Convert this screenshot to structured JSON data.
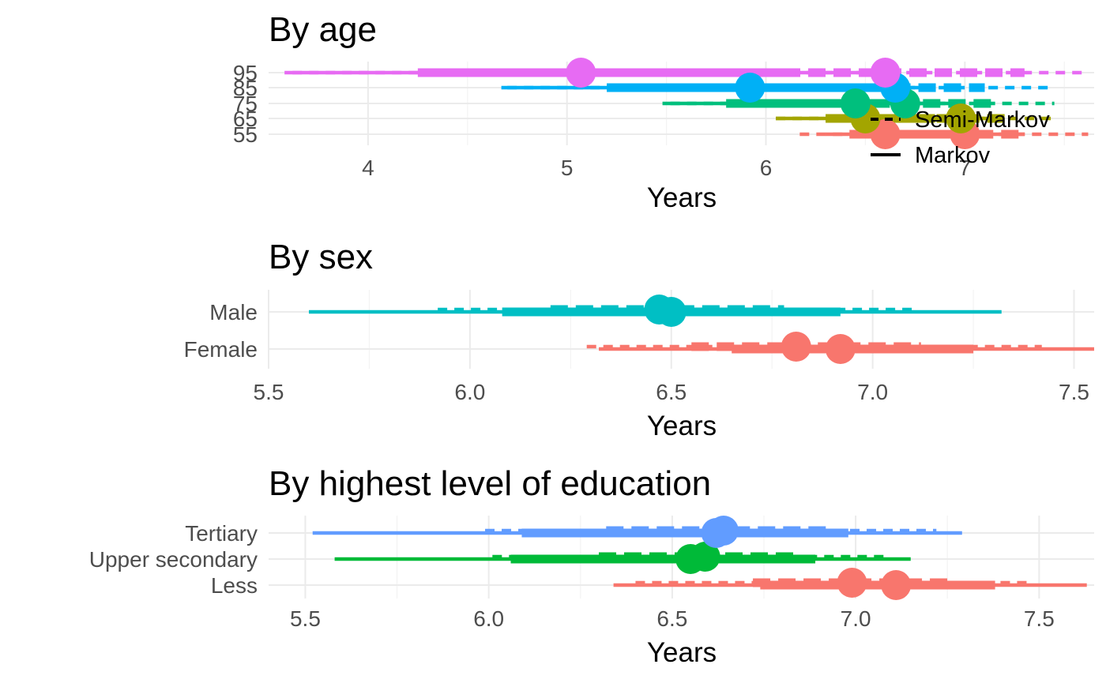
{
  "chart_data": [
    {
      "type": "forest",
      "title": "By age",
      "xlabel": "Years",
      "ylabel": "",
      "xlim": [
        3.5,
        7.65
      ],
      "xticks": [
        4,
        5,
        6,
        7
      ],
      "xtick_labels": [
        "4",
        "5",
        "6",
        "7"
      ],
      "categories": [
        "55",
        "65",
        "75",
        "85",
        "95"
      ],
      "colors": {
        "55": "#F8766D",
        "65": "#A3A500",
        "75": "#00BF7D",
        "85": "#00B0F6",
        "95": "#E76BF3"
      },
      "legend": {
        "position": "right",
        "entries": [
          {
            "label": "Semi-Markov",
            "linetype": "dashed"
          },
          {
            "label": "Markov",
            "linetype": "solid"
          }
        ]
      },
      "series": [
        {
          "model": "Semi-Markov",
          "linetype": "dashed",
          "points": [
            {
              "category": "55",
              "estimate": 7.0,
              "low95": 6.17,
              "high95": 7.62,
              "low50": 6.42,
              "high50": 7.3
            },
            {
              "category": "65",
              "estimate": 6.98,
              "low95": 6.05,
              "high95": 7.45,
              "low50": 6.35,
              "high50": 7.2
            },
            {
              "category": "75",
              "estimate": 6.7,
              "low95": 5.52,
              "high95": 7.45,
              "low50": 5.9,
              "high50": 7.15
            },
            {
              "category": "85",
              "estimate": 6.65,
              "low95": 4.7,
              "high95": 7.45,
              "low50": 5.75,
              "high50": 7.1
            },
            {
              "category": "95",
              "estimate": 6.6,
              "low95": 3.62,
              "high95": 7.6,
              "low50": 5.45,
              "high50": 7.3
            }
          ]
        },
        {
          "model": "Markov",
          "linetype": "solid",
          "points": [
            {
              "category": "55",
              "estimate": 6.6,
              "low95": 6.3,
              "high95": 7.3,
              "low50": 6.5,
              "high50": 7.0
            },
            {
              "category": "65",
              "estimate": 6.5,
              "low95": 6.05,
              "high95": 7.15,
              "low50": 6.3,
              "high50": 6.85
            },
            {
              "category": "75",
              "estimate": 6.45,
              "low95": 5.48,
              "high95": 7.0,
              "low50": 5.8,
              "high50": 6.6
            },
            {
              "category": "85",
              "estimate": 5.92,
              "low95": 4.67,
              "high95": 6.85,
              "low50": 5.2,
              "high50": 6.55
            },
            {
              "category": "95",
              "estimate": 5.07,
              "low95": 3.58,
              "high95": 6.6,
              "low50": 4.25,
              "high50": 6.15
            }
          ]
        }
      ]
    },
    {
      "type": "forest",
      "title": "By sex",
      "xlabel": "Years",
      "ylabel": "",
      "xlim": [
        5.5,
        7.55
      ],
      "xticks": [
        5.5,
        6.0,
        6.5,
        7.0,
        7.5
      ],
      "xtick_labels": [
        "5.5",
        "6.0",
        "6.5",
        "7.0",
        "7.5"
      ],
      "categories": [
        "Female",
        "Male"
      ],
      "colors": {
        "Female": "#F8766D",
        "Male": "#00BFC4"
      },
      "series": [
        {
          "model": "Semi-Markov",
          "linetype": "dashed",
          "points": [
            {
              "category": "Male",
              "estimate": 6.47,
              "low95": 5.92,
              "high95": 7.1,
              "low50": 6.2,
              "high50": 6.78
            },
            {
              "category": "Female",
              "estimate": 6.81,
              "low95": 6.29,
              "high95": 7.42,
              "low50": 6.55,
              "high50": 7.12
            }
          ]
        },
        {
          "model": "Markov",
          "linetype": "solid",
          "points": [
            {
              "category": "Male",
              "estimate": 6.5,
              "low95": 5.6,
              "high95": 7.32,
              "low50": 6.08,
              "high50": 6.92
            },
            {
              "category": "Female",
              "estimate": 6.92,
              "low95": 6.32,
              "high95": 7.55,
              "low50": 6.65,
              "high50": 7.25
            }
          ]
        }
      ]
    },
    {
      "type": "forest",
      "title": "By highest level of education",
      "xlabel": "Years",
      "ylabel": "",
      "xlim": [
        5.4,
        7.65
      ],
      "xticks": [
        5.5,
        6.0,
        6.5,
        7.0,
        7.5
      ],
      "xtick_labels": [
        "5.5",
        "6.0",
        "6.5",
        "7.0",
        "7.5"
      ],
      "categories": [
        "Less",
        "Upper secondary",
        "Tertiary"
      ],
      "colors": {
        "Less": "#F8766D",
        "Upper secondary": "#00BA38",
        "Tertiary": "#619CFF"
      },
      "series": [
        {
          "model": "Semi-Markov",
          "linetype": "dashed",
          "points": [
            {
              "category": "Tertiary",
              "estimate": 6.64,
              "low95": 5.99,
              "high95": 7.22,
              "low50": 6.32,
              "high50": 6.94
            },
            {
              "category": "Upper secondary",
              "estimate": 6.59,
              "low95": 6.01,
              "high95": 7.08,
              "low50": 6.3,
              "high50": 6.85
            },
            {
              "category": "Less",
              "estimate": 6.99,
              "low95": 6.4,
              "high95": 7.48,
              "low50": 6.72,
              "high50": 7.25
            }
          ]
        },
        {
          "model": "Markov",
          "linetype": "solid",
          "points": [
            {
              "category": "Tertiary",
              "estimate": 6.62,
              "low95": 5.52,
              "high95": 7.29,
              "low50": 6.09,
              "high50": 6.98
            },
            {
              "category": "Upper secondary",
              "estimate": 6.55,
              "low95": 5.58,
              "high95": 7.15,
              "low50": 6.06,
              "high50": 6.89
            },
            {
              "category": "Less",
              "estimate": 7.11,
              "low95": 6.34,
              "high95": 7.63,
              "low50": 6.74,
              "high50": 7.38
            }
          ]
        }
      ]
    }
  ]
}
